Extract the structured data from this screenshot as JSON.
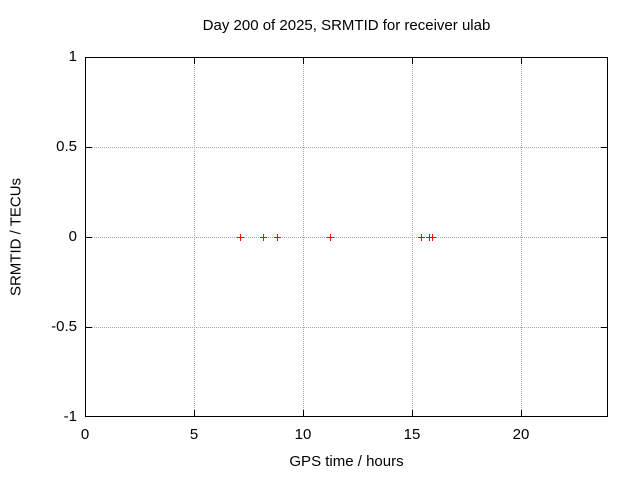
{
  "chart_data": {
    "type": "scatter",
    "title": "Day 200 of 2025, SRMTID for receiver ulab",
    "xlabel": "GPS time / hours",
    "ylabel": "SRMTID / TECUs",
    "xlim": [
      0,
      24
    ],
    "ylim": [
      -1,
      1
    ],
    "xtick_values": [
      0,
      5,
      10,
      15,
      20
    ],
    "xtick_labels": [
      "0",
      "5",
      "10",
      "15",
      "20"
    ],
    "ytick_values": [
      1,
      0.5,
      0,
      -0.5,
      -1
    ],
    "ytick_labels": [
      "1",
      "0.5",
      "0",
      "-0.5",
      "-1"
    ],
    "grid": true,
    "legend": "none",
    "marker": "plus",
    "marker_color": "#ff0000",
    "axis_color": "#000000",
    "grid_color": "#a9a9a9",
    "background_color": "#ffffff",
    "series": [
      {
        "name": "SRMTID",
        "points": [
          [
            7.15,
            0
          ],
          [
            8.2,
            0
          ],
          [
            8.85,
            0
          ],
          [
            11.25,
            0
          ],
          [
            15.45,
            0
          ],
          [
            15.8,
            0
          ],
          [
            15.95,
            0
          ]
        ]
      }
    ]
  }
}
